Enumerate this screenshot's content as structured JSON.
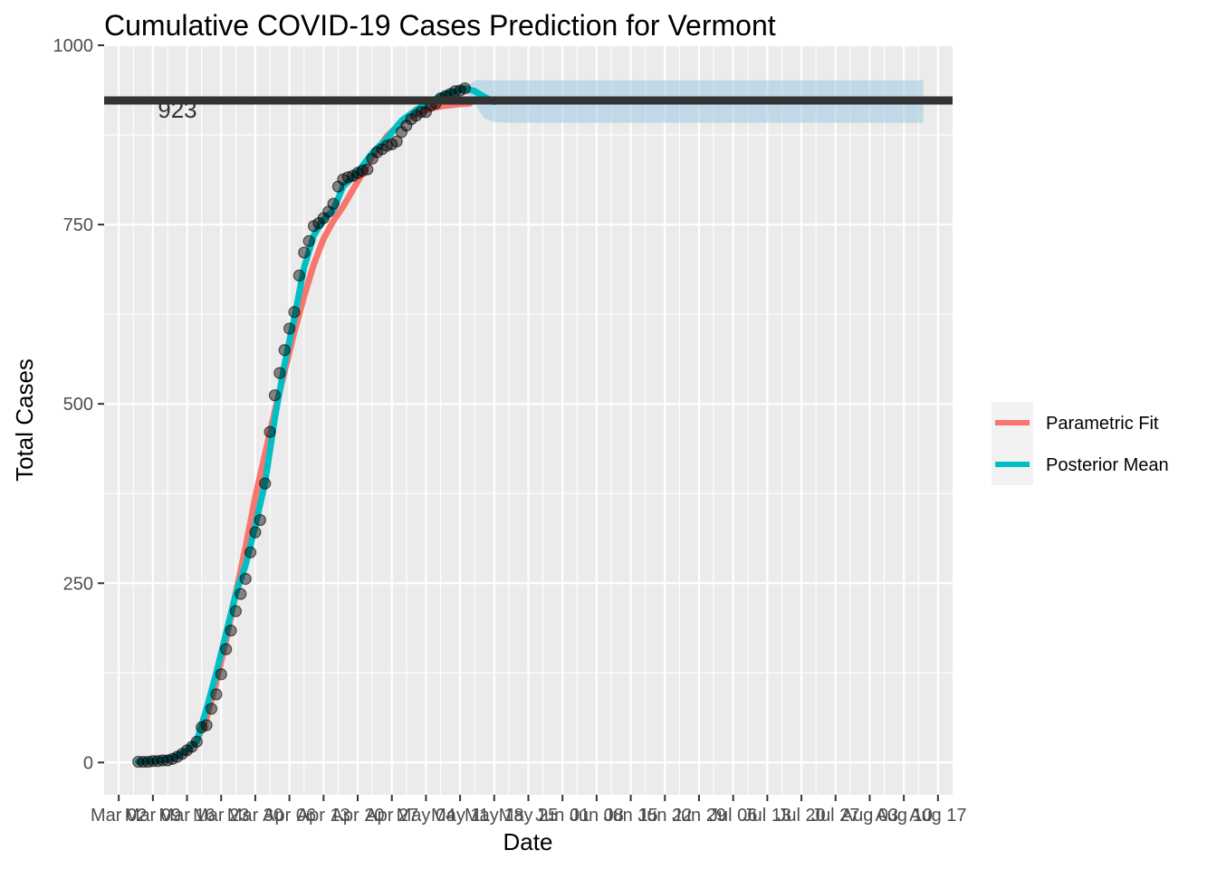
{
  "chart_data": {
    "type": "line",
    "title": "Cumulative COVID-19 Cases Prediction for Vermont",
    "xlabel": "Date",
    "ylabel": "Total Cases",
    "ylim": [
      -45,
      1000
    ],
    "y_ticks": [
      0,
      250,
      500,
      750,
      1000
    ],
    "x_start": "2020-02-28",
    "x_end": "2020-08-20",
    "x_ticks": [
      {
        "date": "2020-03-02",
        "label": "Mar 02"
      },
      {
        "date": "2020-03-09",
        "label": "Mar 09"
      },
      {
        "date": "2020-03-16",
        "label": "Mar 16"
      },
      {
        "date": "2020-03-23",
        "label": "Mar 23"
      },
      {
        "date": "2020-03-30",
        "label": "Mar 30"
      },
      {
        "date": "2020-04-06",
        "label": "Apr 06"
      },
      {
        "date": "2020-04-13",
        "label": "Apr 13"
      },
      {
        "date": "2020-04-20",
        "label": "Apr 20"
      },
      {
        "date": "2020-04-27",
        "label": "Apr 27"
      },
      {
        "date": "2020-05-04",
        "label": "May 04"
      },
      {
        "date": "2020-05-11",
        "label": "May 11"
      },
      {
        "date": "2020-05-18",
        "label": "May 18"
      },
      {
        "date": "2020-05-25",
        "label": "May 25"
      },
      {
        "date": "2020-06-01",
        "label": "Jun 01"
      },
      {
        "date": "2020-06-08",
        "label": "Jun 08"
      },
      {
        "date": "2020-06-15",
        "label": "Jun 15"
      },
      {
        "date": "2020-06-22",
        "label": "Jun 22"
      },
      {
        "date": "2020-06-29",
        "label": "Jun 29"
      },
      {
        "date": "2020-07-06",
        "label": "Jul 06"
      },
      {
        "date": "2020-07-13",
        "label": "Jul 13"
      },
      {
        "date": "2020-07-20",
        "label": "Jul 20"
      },
      {
        "date": "2020-07-27",
        "label": "Jul 27"
      },
      {
        "date": "2020-08-03",
        "label": "Aug 03"
      },
      {
        "date": "2020-08-10",
        "label": "Aug 10"
      },
      {
        "date": "2020-08-17",
        "label": "Aug 17"
      }
    ],
    "observed": {
      "dates": [
        "2020-03-06",
        "2020-03-07",
        "2020-03-08",
        "2020-03-09",
        "2020-03-10",
        "2020-03-11",
        "2020-03-12",
        "2020-03-13",
        "2020-03-14",
        "2020-03-15",
        "2020-03-16",
        "2020-03-17",
        "2020-03-18",
        "2020-03-19",
        "2020-03-20",
        "2020-03-21",
        "2020-03-22",
        "2020-03-23",
        "2020-03-24",
        "2020-03-25",
        "2020-03-26",
        "2020-03-27",
        "2020-03-28",
        "2020-03-29",
        "2020-03-30",
        "2020-03-31",
        "2020-04-01",
        "2020-04-02",
        "2020-04-03",
        "2020-04-04",
        "2020-04-05",
        "2020-04-06",
        "2020-04-07",
        "2020-04-08",
        "2020-04-09",
        "2020-04-10",
        "2020-04-11",
        "2020-04-12",
        "2020-04-13",
        "2020-04-14",
        "2020-04-15",
        "2020-04-16",
        "2020-04-17",
        "2020-04-18",
        "2020-04-19",
        "2020-04-20",
        "2020-04-21",
        "2020-04-22",
        "2020-04-23",
        "2020-04-24",
        "2020-04-25",
        "2020-04-26",
        "2020-04-27",
        "2020-04-28",
        "2020-04-29",
        "2020-04-30",
        "2020-05-01",
        "2020-05-02",
        "2020-05-03",
        "2020-05-04",
        "2020-05-05",
        "2020-05-06",
        "2020-05-07",
        "2020-05-08",
        "2020-05-09",
        "2020-05-10",
        "2020-05-11",
        "2020-05-12"
      ],
      "values": [
        1,
        1,
        1,
        2,
        2,
        3,
        3,
        5,
        8,
        12,
        17,
        22,
        29,
        49,
        52,
        75,
        95,
        123,
        158,
        184,
        211,
        235,
        256,
        293,
        321,
        338,
        389,
        461,
        512,
        543,
        575,
        605,
        628,
        679,
        711,
        727,
        748,
        752,
        759,
        768,
        779,
        803,
        813,
        816,
        818,
        822,
        825,
        827,
        842,
        851,
        855,
        860,
        862,
        866,
        879,
        888,
        897,
        902,
        907,
        907,
        916,
        919,
        926,
        929,
        932,
        936,
        937,
        940
      ]
    },
    "series": [
      {
        "name": "Parametric Fit",
        "color": "#F8766D",
        "dates": [
          "2020-03-06",
          "2020-03-10",
          "2020-03-13",
          "2020-03-16",
          "2020-03-18",
          "2020-03-20",
          "2020-03-22",
          "2020-03-24",
          "2020-03-26",
          "2020-03-28",
          "2020-03-30",
          "2020-04-01",
          "2020-04-03",
          "2020-04-05",
          "2020-04-07",
          "2020-04-09",
          "2020-04-11",
          "2020-04-13",
          "2020-04-15",
          "2020-04-17",
          "2020-04-20",
          "2020-04-23",
          "2020-04-26",
          "2020-04-29",
          "2020-05-02",
          "2020-05-05",
          "2020-05-08",
          "2020-05-11",
          "2020-05-13"
        ],
        "values": [
          1,
          3,
          6,
          15,
          30,
          62,
          112,
          170,
          236,
          300,
          370,
          430,
          490,
          545,
          600,
          650,
          695,
          730,
          755,
          775,
          810,
          845,
          873,
          893,
          905,
          912,
          916,
          918,
          919
        ]
      },
      {
        "name": "Posterior Mean",
        "color": "#00BFC4",
        "dates": [
          "2020-03-06",
          "2020-03-10",
          "2020-03-13",
          "2020-03-16",
          "2020-03-18",
          "2020-03-20",
          "2020-03-22",
          "2020-03-24",
          "2020-03-26",
          "2020-03-28",
          "2020-03-30",
          "2020-04-01",
          "2020-04-03",
          "2020-04-05",
          "2020-04-07",
          "2020-04-09",
          "2020-04-11",
          "2020-04-13",
          "2020-04-15",
          "2020-04-17",
          "2020-04-20",
          "2020-04-23",
          "2020-04-26",
          "2020-04-29",
          "2020-05-02",
          "2020-05-05",
          "2020-05-08",
          "2020-05-11",
          "2020-05-12",
          "2020-05-14",
          "2020-05-16",
          "2020-05-18"
        ],
        "values": [
          1,
          3,
          6,
          17,
          30,
          75,
          125,
          180,
          235,
          275,
          330,
          390,
          480,
          555,
          620,
          690,
          735,
          757,
          770,
          803,
          823,
          850,
          870,
          895,
          910,
          922,
          932,
          938,
          940,
          936,
          928,
          921
        ]
      }
    ],
    "band": {
      "name": "Posterior Interval",
      "color": "#9ecae1",
      "dates": [
        "2020-05-12",
        "2020-05-14",
        "2020-05-15",
        "2020-05-16",
        "2020-05-18",
        "2020-05-21",
        "2020-05-25",
        "2020-06-01",
        "2020-07-01",
        "2020-08-01",
        "2020-08-14"
      ],
      "upper": [
        940,
        951,
        952,
        951,
        951,
        951,
        951,
        951,
        951,
        951,
        951
      ],
      "lower": [
        938,
        920,
        908,
        898,
        893,
        892,
        892,
        892,
        892,
        892,
        892
      ]
    },
    "hline": {
      "value": 923,
      "label": "923",
      "label_date": "2020-03-10",
      "color": "#333333"
    },
    "legend": {
      "position": "right",
      "entries": [
        "Parametric Fit",
        "Posterior Mean"
      ]
    },
    "grid": true,
    "panel_background": "#EBEBEB"
  }
}
